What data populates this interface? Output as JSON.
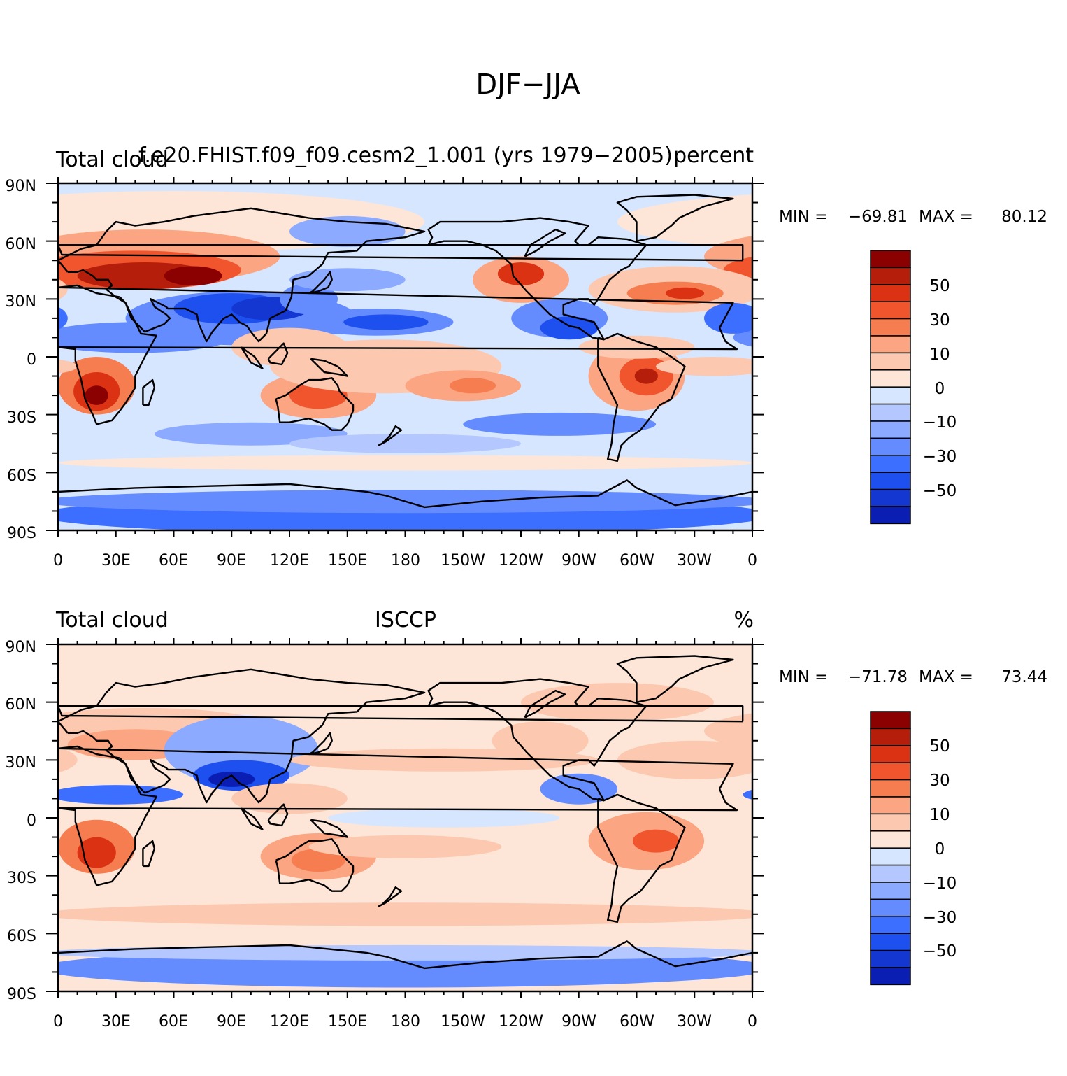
{
  "figure": {
    "title": "DJF−JJA"
  },
  "colors": {
    "levels": [
      "#00008b",
      "#0a1eb4",
      "#1437d2",
      "#1e50f0",
      "#3c6eff",
      "#648cff",
      "#8caaff",
      "#b4c8ff",
      "#d7e6ff",
      "#fde6d7",
      "#fcc8af",
      "#fba582",
      "#f57d50",
      "#f0552d",
      "#dc3214",
      "#b41e0a",
      "#8b0000"
    ],
    "coast": "#000000"
  },
  "panels": [
    {
      "left_label": "Total cloud",
      "center_label": "f.e20.FHIST.f09_f09.cesm2_1.001 (yrs 1979−2005)",
      "right_label": "percent",
      "stats": {
        "min_label": "MIN =",
        "min_value": "−69.81",
        "max_label": "MAX =",
        "max_value": "80.12"
      }
    },
    {
      "left_label": "Total cloud",
      "center_label": "ISCCP",
      "right_label": "%",
      "stats": {
        "min_label": "MIN =",
        "min_value": "−71.78",
        "max_label": "MAX =",
        "max_value": "73.44"
      }
    }
  ],
  "axes": {
    "lat_ticks": [
      "90N",
      "60N",
      "30N",
      "0",
      "30S",
      "60S",
      "90S"
    ],
    "lon_ticks": [
      "0",
      "30E",
      "60E",
      "90E",
      "120E",
      "150E",
      "180",
      "150W",
      "120W",
      "90W",
      "60W",
      "30W",
      "0"
    ]
  },
  "colorbar": {
    "labels": [
      "50",
      "30",
      "10",
      "0",
      "−10",
      "−30",
      "−50"
    ]
  }
}
